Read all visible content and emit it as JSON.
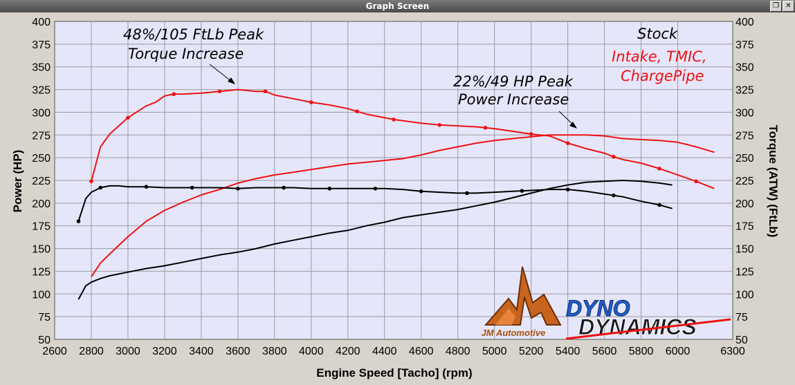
{
  "window": {
    "title": "Graph Screen"
  },
  "logos": {
    "jm": {
      "text": "JM Automotive"
    },
    "dyno": {
      "line1": "DYNO",
      "line2": "DYNAMICS"
    }
  },
  "colors": {
    "stock": "#000000",
    "modified": "#ee1111",
    "plot_bg": "#e6e6fa",
    "grid": "#9a9aa0"
  },
  "chart_data": {
    "type": "line",
    "xlabel": "Engine Speed [Tacho] (rpm)",
    "ylabel_left": "Power (HP)",
    "ylabel_right": "Torque (ATW) (FtLb)",
    "xlim": [
      2600,
      6300
    ],
    "ylim": [
      50,
      400
    ],
    "grid": true,
    "x_ticks": [
      "2600",
      "2800",
      "3000",
      "3200",
      "3400",
      "3600",
      "3800",
      "4000",
      "4200",
      "4400",
      "4600",
      "4800",
      "5000",
      "5200",
      "5400",
      "5600",
      "5800",
      "6000",
      "6300"
    ],
    "y_ticks_left": [
      "400",
      "375",
      "350",
      "325",
      "300",
      "275",
      "250",
      "225",
      "200",
      "175",
      "150",
      "125",
      "100",
      "75",
      "50"
    ],
    "y_ticks_right": [
      "400",
      "375",
      "350",
      "325",
      "300",
      "275",
      "250",
      "225",
      "200",
      "175",
      "150",
      "125",
      "100",
      "75",
      "50"
    ],
    "legend": [
      {
        "name": "Stock",
        "color": "#000000"
      },
      {
        "name": "Intake, TMIC,",
        "color": "#ee1111"
      },
      {
        "name": "ChargePipe",
        "color": "#ee1111"
      }
    ],
    "annotations": [
      {
        "line1": "48%/105 FtLb Peak",
        "line2": "Torque Increase"
      },
      {
        "line1": "22%/49 HP Peak",
        "line2": "Power Increase"
      }
    ],
    "series": [
      {
        "key": "mod_torque",
        "color": "#ee1111",
        "markers": true,
        "x": [
          2800,
          2850,
          2900,
          3000,
          3100,
          3150,
          3200,
          3250,
          3300,
          3400,
          3500,
          3600,
          3700,
          3750,
          3800,
          3900,
          4000,
          4100,
          4200,
          4300,
          4450,
          4600,
          4700,
          4800,
          4900,
          5000,
          5100,
          5200,
          5300,
          5400,
          5500,
          5600,
          5650,
          5700,
          5800,
          5900,
          6000,
          6100,
          6200
        ],
        "y": [
          224,
          262,
          276,
          294,
          307,
          311,
          318,
          320,
          320,
          321,
          323,
          325,
          323,
          323,
          319,
          315,
          311,
          308,
          304,
          298,
          292,
          288,
          286,
          285,
          284,
          282,
          279,
          276,
          274,
          266,
          260,
          255,
          251,
          248,
          244,
          238,
          231,
          224,
          216
        ],
        "marker_x": [
          2800,
          3000,
          3250,
          3500,
          3750,
          4000,
          4250,
          4450,
          4700,
          4950,
          5200,
          5400,
          5650,
          5900,
          6100
        ]
      },
      {
        "key": "mod_power",
        "color": "#ee1111",
        "markers": false,
        "x": [
          2800,
          2850,
          2900,
          3000,
          3100,
          3200,
          3300,
          3400,
          3500,
          3600,
          3700,
          3800,
          3900,
          4000,
          4100,
          4200,
          4300,
          4400,
          4500,
          4600,
          4700,
          4800,
          4900,
          5000,
          5100,
          5200,
          5300,
          5400,
          5500,
          5600,
          5700,
          5800,
          5900,
          6000,
          6100,
          6200
        ],
        "y": [
          119,
          134,
          144,
          163,
          180,
          192,
          201,
          209,
          215,
          222,
          227,
          231,
          234,
          237,
          240,
          243,
          245,
          247,
          249,
          253,
          258,
          262,
          266,
          269,
          271,
          273,
          275,
          275,
          275,
          274,
          271,
          270,
          269,
          267,
          262,
          256
        ]
      },
      {
        "key": "stock_torque",
        "color": "#000000",
        "markers": true,
        "x": [
          2730,
          2770,
          2800,
          2850,
          2900,
          2950,
          3000,
          3100,
          3200,
          3300,
          3400,
          3500,
          3600,
          3700,
          3800,
          3900,
          4000,
          4100,
          4200,
          4300,
          4400,
          4500,
          4600,
          4700,
          4800,
          4900,
          5000,
          5100,
          5200,
          5300,
          5400,
          5500,
          5600,
          5700,
          5800,
          5900,
          5970
        ],
        "y": [
          180,
          205,
          212,
          217,
          219,
          219,
          218,
          218,
          217,
          217,
          217,
          217,
          216,
          217,
          217,
          217,
          216,
          216,
          216,
          216,
          216,
          215,
          213,
          212,
          211,
          211,
          212,
          213,
          214,
          215,
          215,
          213,
          210,
          207,
          202,
          198,
          194
        ],
        "marker_x": [
          2730,
          2850,
          3100,
          3350,
          3600,
          3850,
          4100,
          4350,
          4600,
          4850,
          5150,
          5400,
          5650,
          5900
        ]
      },
      {
        "key": "stock_power",
        "color": "#000000",
        "markers": false,
        "x": [
          2730,
          2770,
          2800,
          2850,
          2900,
          3000,
          3100,
          3200,
          3300,
          3400,
          3500,
          3600,
          3700,
          3800,
          3900,
          4000,
          4100,
          4200,
          4300,
          4400,
          4500,
          4600,
          4700,
          4800,
          4900,
          5000,
          5100,
          5200,
          5300,
          5400,
          5500,
          5600,
          5700,
          5800,
          5900,
          5970
        ],
        "y": [
          94,
          109,
          113,
          117,
          120,
          124,
          128,
          131,
          135,
          139,
          143,
          146,
          150,
          155,
          159,
          163,
          167,
          170,
          175,
          179,
          184,
          187,
          190,
          193,
          197,
          201,
          206,
          211,
          216,
          220,
          223,
          224,
          225,
          224,
          222,
          220
        ]
      }
    ]
  }
}
